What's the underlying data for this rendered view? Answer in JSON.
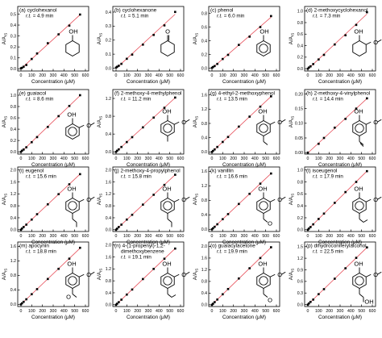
{
  "axis_labels": {
    "x": "Concentration (μM)",
    "y": "A/A",
    "y_sub": "IS"
  },
  "chart_data": [
    {
      "type": "scatter",
      "title": "(a) cyclohexanol",
      "retention_time": "4.9 min",
      "structure": "cyclohexanol",
      "xlabel": "Concentration (μM)",
      "ylabel": "A/A_IS",
      "xticks": [
        0,
        100,
        200,
        300,
        400,
        500,
        600
      ],
      "yticks": [
        0.0,
        0.1,
        0.2,
        0.3,
        0.4,
        0.5
      ],
      "xlim": [
        -30,
        630
      ],
      "ylim": [
        -0.02,
        0.57
      ],
      "x": [
        0,
        10,
        25,
        50,
        100,
        150,
        250,
        350,
        450,
        550
      ],
      "y": [
        0.005,
        0.009,
        0.019,
        0.035,
        0.09,
        0.14,
        0.234,
        0.315,
        0.395,
        0.496
      ]
    },
    {
      "type": "scatter",
      "title": "(b) cyclohexanone",
      "retention_time": "5.1 min",
      "structure": "cyclohexanone",
      "xlabel": "Concentration (μM)",
      "ylabel": "A/A_IS",
      "xticks": [
        0,
        100,
        200,
        300,
        400,
        500,
        600
      ],
      "yticks": [
        0.0,
        0.1,
        0.2,
        0.3,
        0.4
      ],
      "xlim": [
        -30,
        630
      ],
      "ylim": [
        -0.02,
        0.44
      ],
      "x": [
        0,
        10,
        25,
        50,
        100,
        150,
        250,
        350,
        450,
        550
      ],
      "y": [
        0.004,
        0.01,
        0.017,
        0.031,
        0.067,
        0.097,
        0.168,
        0.237,
        0.305,
        0.401
      ]
    },
    {
      "type": "scatter",
      "title": "(c) phenol",
      "retention_time": "6.0 min",
      "structure": "phenol",
      "xlabel": "Concentration (μM)",
      "ylabel": "A/A_IS",
      "xticks": [
        0,
        100,
        200,
        300,
        400,
        500,
        600
      ],
      "yticks": [
        0.0,
        0.2,
        0.4,
        0.6,
        0.8
      ],
      "xlim": [
        -30,
        630
      ],
      "ylim": [
        -0.04,
        0.9
      ],
      "x": [
        0,
        10,
        25,
        50,
        100,
        150,
        250,
        350,
        450,
        550
      ],
      "y": [
        0.006,
        0.018,
        0.032,
        0.063,
        0.135,
        0.195,
        0.34,
        0.46,
        0.6,
        0.76
      ]
    },
    {
      "type": "scatter",
      "title": "(d) 2-methoxycyclohexanol",
      "retention_time": "7.3 min",
      "structure": "2-methoxycyclohexanol",
      "xlabel": "Concentration (μM)",
      "ylabel": "A/A_IS",
      "xticks": [
        0,
        100,
        200,
        300,
        400,
        500,
        600
      ],
      "yticks": [
        0.0,
        0.2,
        0.4,
        0.6,
        0.8,
        1.0
      ],
      "xlim": [
        -30,
        630
      ],
      "ylim": [
        -0.04,
        1.08
      ],
      "x": [
        0,
        10,
        25,
        50,
        100,
        150,
        250,
        350,
        450,
        550
      ],
      "y": [
        0.0,
        0.02,
        0.04,
        0.08,
        0.16,
        0.24,
        0.42,
        0.58,
        0.76,
        0.98
      ]
    },
    {
      "type": "scatter",
      "title": "(e) guaiacol",
      "retention_time": "8.6 min",
      "structure": "guaiacol",
      "xlabel": "Concentration (μM)",
      "ylabel": "A/A_IS",
      "xticks": [
        0,
        100,
        200,
        300,
        400,
        500,
        600
      ],
      "yticks": [
        0.0,
        0.2,
        0.4,
        0.6,
        0.8,
        1.0
      ],
      "xlim": [
        -30,
        630
      ],
      "ylim": [
        -0.04,
        1.1
      ],
      "x": [
        0,
        10,
        25,
        50,
        100,
        150,
        250,
        350,
        450,
        550
      ],
      "y": [
        0.0,
        0.02,
        0.04,
        0.08,
        0.17,
        0.26,
        0.44,
        0.63,
        0.81,
        1.0
      ]
    },
    {
      "type": "scatter",
      "title": "(f) 2-methoxy-4-methylphenol",
      "retention_time": "11.2 min",
      "structure": "2-methoxy-4-methylphenol",
      "xlabel": "Concentration (μM)",
      "ylabel": "A/A_IS",
      "xticks": [
        0,
        100,
        200,
        300,
        400,
        500,
        600
      ],
      "yticks": [
        0.0,
        0.4,
        0.8,
        1.2
      ],
      "xlim": [
        -30,
        630
      ],
      "ylim": [
        -0.05,
        1.4
      ],
      "x": [
        0,
        10,
        25,
        50,
        100,
        150,
        250,
        350,
        450,
        550
      ],
      "y": [
        0.0,
        0.025,
        0.055,
        0.11,
        0.22,
        0.33,
        0.55,
        0.77,
        0.99,
        1.22
      ]
    },
    {
      "type": "scatter",
      "title": "(g) 4-ethyl-2-methoxyphenol",
      "retention_time": "13.5 min",
      "structure": "4-ethyl-2-methoxyphenol",
      "xlabel": "Concentration (μM)",
      "ylabel": "A/A_IS",
      "xticks": [
        0,
        100,
        200,
        300,
        400,
        500,
        600
      ],
      "yticks": [
        0.0,
        0.4,
        0.8,
        1.2,
        1.6
      ],
      "xlim": [
        -30,
        630
      ],
      "ylim": [
        -0.06,
        1.75
      ],
      "x": [
        0,
        10,
        25,
        50,
        100,
        150,
        250,
        350,
        450,
        550
      ],
      "y": [
        0.0,
        0.03,
        0.07,
        0.14,
        0.28,
        0.42,
        0.71,
        0.99,
        1.27,
        1.56
      ]
    },
    {
      "type": "scatter",
      "title": "(h) 2-methoxy-4-vinylphenol",
      "retention_time": "14.4 min",
      "structure": "2-methoxy-4-vinylphenol",
      "xlabel": "Concentration (μM)",
      "ylabel": "A/A_IS",
      "xticks": [
        0,
        100,
        200,
        300,
        400,
        500,
        600
      ],
      "yticks": [
        0.0,
        0.05,
        0.1,
        0.15,
        0.2
      ],
      "xlim": [
        -30,
        630
      ],
      "ylim": [
        -0.005,
        0.215
      ],
      "x": [
        0,
        100,
        150,
        250,
        350,
        450,
        550
      ],
      "y": [
        0.0,
        0.03,
        0.05,
        0.085,
        0.115,
        0.15,
        0.185
      ]
    },
    {
      "type": "scatter",
      "title": "(i) eugenol",
      "retention_time": "15.6 min",
      "structure": "eugenol",
      "xlabel": "Concentration (μM)",
      "ylabel": "A/A_IS",
      "xticks": [
        0,
        100,
        200,
        300,
        400,
        500,
        600
      ],
      "yticks": [
        0.0,
        0.4,
        0.8,
        1.2,
        1.6,
        2.0
      ],
      "xlim": [
        -30,
        630
      ],
      "ylim": [
        -0.06,
        2.1
      ],
      "x": [
        0,
        10,
        25,
        50,
        100,
        150,
        250,
        350,
        450,
        550
      ],
      "y": [
        0.0,
        0.04,
        0.09,
        0.17,
        0.34,
        0.52,
        0.85,
        1.19,
        1.52,
        1.86
      ]
    },
    {
      "type": "scatter",
      "title": "(j) 2-methoxy-4-propylphenol",
      "retention_time": "15.8 min",
      "structure": "2-methoxy-4-propylphenol",
      "xlabel": "Concentration (μM)",
      "ylabel": "A/A_IS",
      "xticks": [
        0,
        100,
        200,
        300,
        400,
        500,
        600
      ],
      "yticks": [
        0.0,
        0.4,
        0.8,
        1.2,
        1.6,
        2.0
      ],
      "xlim": [
        -30,
        630
      ],
      "ylim": [
        -0.06,
        2.1
      ],
      "x": [
        0,
        10,
        25,
        50,
        100,
        150,
        250,
        350,
        450,
        550
      ],
      "y": [
        0.0,
        0.035,
        0.09,
        0.17,
        0.34,
        0.5,
        0.84,
        1.17,
        1.5,
        1.84
      ]
    },
    {
      "type": "scatter",
      "title": "(k) vanillin",
      "retention_time": "16.6 min",
      "structure": "vanillin",
      "xlabel": "Concentration (μM)",
      "ylabel": "A/A_IS",
      "xticks": [
        0,
        100,
        200,
        300,
        400,
        500,
        600
      ],
      "yticks": [
        0.0,
        0.4,
        0.8,
        1.2,
        1.6
      ],
      "xlim": [
        -30,
        630
      ],
      "ylim": [
        -0.06,
        1.72
      ],
      "x": [
        0,
        10,
        25,
        50,
        100,
        150,
        250,
        350,
        450,
        550
      ],
      "y": [
        0.0,
        0.03,
        0.07,
        0.14,
        0.28,
        0.42,
        0.7,
        0.98,
        1.26,
        1.54
      ]
    },
    {
      "type": "scatter",
      "title": "(l) isoeugenol",
      "retention_time": "17.9 min",
      "structure": "isoeugenol",
      "xlabel": "Concentration (μM)",
      "ylabel": "A/A_IS",
      "xticks": [
        0,
        100,
        200,
        300,
        400,
        500,
        600
      ],
      "yticks": [
        0.0,
        0.2,
        0.4,
        0.6,
        0.8,
        1.0
      ],
      "xlim": [
        -30,
        630
      ],
      "ylim": [
        -0.03,
        1.05
      ],
      "x": [
        0,
        10,
        25,
        50,
        100,
        150,
        250,
        350,
        450,
        550
      ],
      "y": [
        0.0,
        0.02,
        0.045,
        0.09,
        0.18,
        0.27,
        0.45,
        0.63,
        0.8,
        0.98
      ]
    },
    {
      "type": "scatter",
      "title": "(m) apocynin",
      "retention_time": "18.8 min",
      "structure": "apocynin",
      "xlabel": "Concentration (μM)",
      "ylabel": "A/A_IS",
      "xticks": [
        0,
        100,
        200,
        300,
        400,
        500,
        600
      ],
      "yticks": [
        0.0,
        0.4,
        0.8,
        1.2,
        1.6
      ],
      "xlim": [
        -30,
        630
      ],
      "ylim": [
        -0.06,
        1.72
      ],
      "x": [
        0,
        10,
        25,
        50,
        100,
        150,
        250,
        350,
        450,
        550
      ],
      "y": [
        0.0,
        0.03,
        0.07,
        0.14,
        0.28,
        0.42,
        0.7,
        0.98,
        1.26,
        1.56
      ]
    },
    {
      "type": "scatter",
      "title": "(n) 4-(1-propenyl)-1,2-dimethoxybenzene",
      "retention_time": "19.1 min",
      "structure": "4-(1-propenyl)-1,2-dimethoxybenzene",
      "xlabel": "Concentration (μM)",
      "ylabel": "A/A_IS",
      "xticks": [
        0,
        100,
        200,
        300,
        400,
        500,
        600
      ],
      "yticks": [
        0.0,
        0.4,
        0.8,
        1.2,
        1.6,
        2.0
      ],
      "xlim": [
        -30,
        630
      ],
      "ylim": [
        -0.06,
        2.1
      ],
      "x": [
        0,
        10,
        25,
        50,
        100,
        150,
        250,
        350,
        450,
        550
      ],
      "y": [
        0.0,
        0.035,
        0.085,
        0.17,
        0.34,
        0.51,
        0.86,
        1.2,
        1.54,
        1.88
      ]
    },
    {
      "type": "scatter",
      "title": "(o) guaiacylacetone",
      "retention_time": "19.9 min",
      "structure": "guaiacylacetone",
      "xlabel": "Concentration (μM)",
      "ylabel": "A/A_IS",
      "xticks": [
        0,
        100,
        200,
        300,
        400,
        500,
        600
      ],
      "yticks": [
        0.0,
        0.4,
        0.8,
        1.2,
        1.6,
        2.0
      ],
      "xlim": [
        -30,
        630
      ],
      "ylim": [
        -0.06,
        2.15
      ],
      "x": [
        0,
        10,
        25,
        50,
        100,
        150,
        250,
        350,
        450,
        550
      ],
      "y": [
        0.0,
        0.035,
        0.09,
        0.18,
        0.36,
        0.54,
        0.9,
        1.25,
        1.6,
        1.97
      ]
    },
    {
      "type": "scatter",
      "title": "(p) dihydroconiferylalcohol",
      "retention_time": "22.5 min",
      "structure": "dihydroconiferylalcohol",
      "xlabel": "Concentration (μM)",
      "ylabel": "A/A_IS",
      "xticks": [
        0,
        100,
        200,
        300,
        400,
        500,
        600
      ],
      "yticks": [
        0.0,
        0.3,
        0.6,
        0.9,
        1.2,
        1.5
      ],
      "xlim": [
        -30,
        630
      ],
      "ylim": [
        -0.05,
        1.62
      ],
      "x": [
        0,
        10,
        25,
        50,
        100,
        150,
        250,
        350,
        450,
        550
      ],
      "y": [
        0.0,
        0.03,
        0.07,
        0.13,
        0.27,
        0.4,
        0.67,
        0.94,
        1.21,
        1.48
      ]
    }
  ],
  "style": {
    "point_color": "#000000",
    "fit_color": "#e8505b",
    "axis_color": "#000000"
  }
}
